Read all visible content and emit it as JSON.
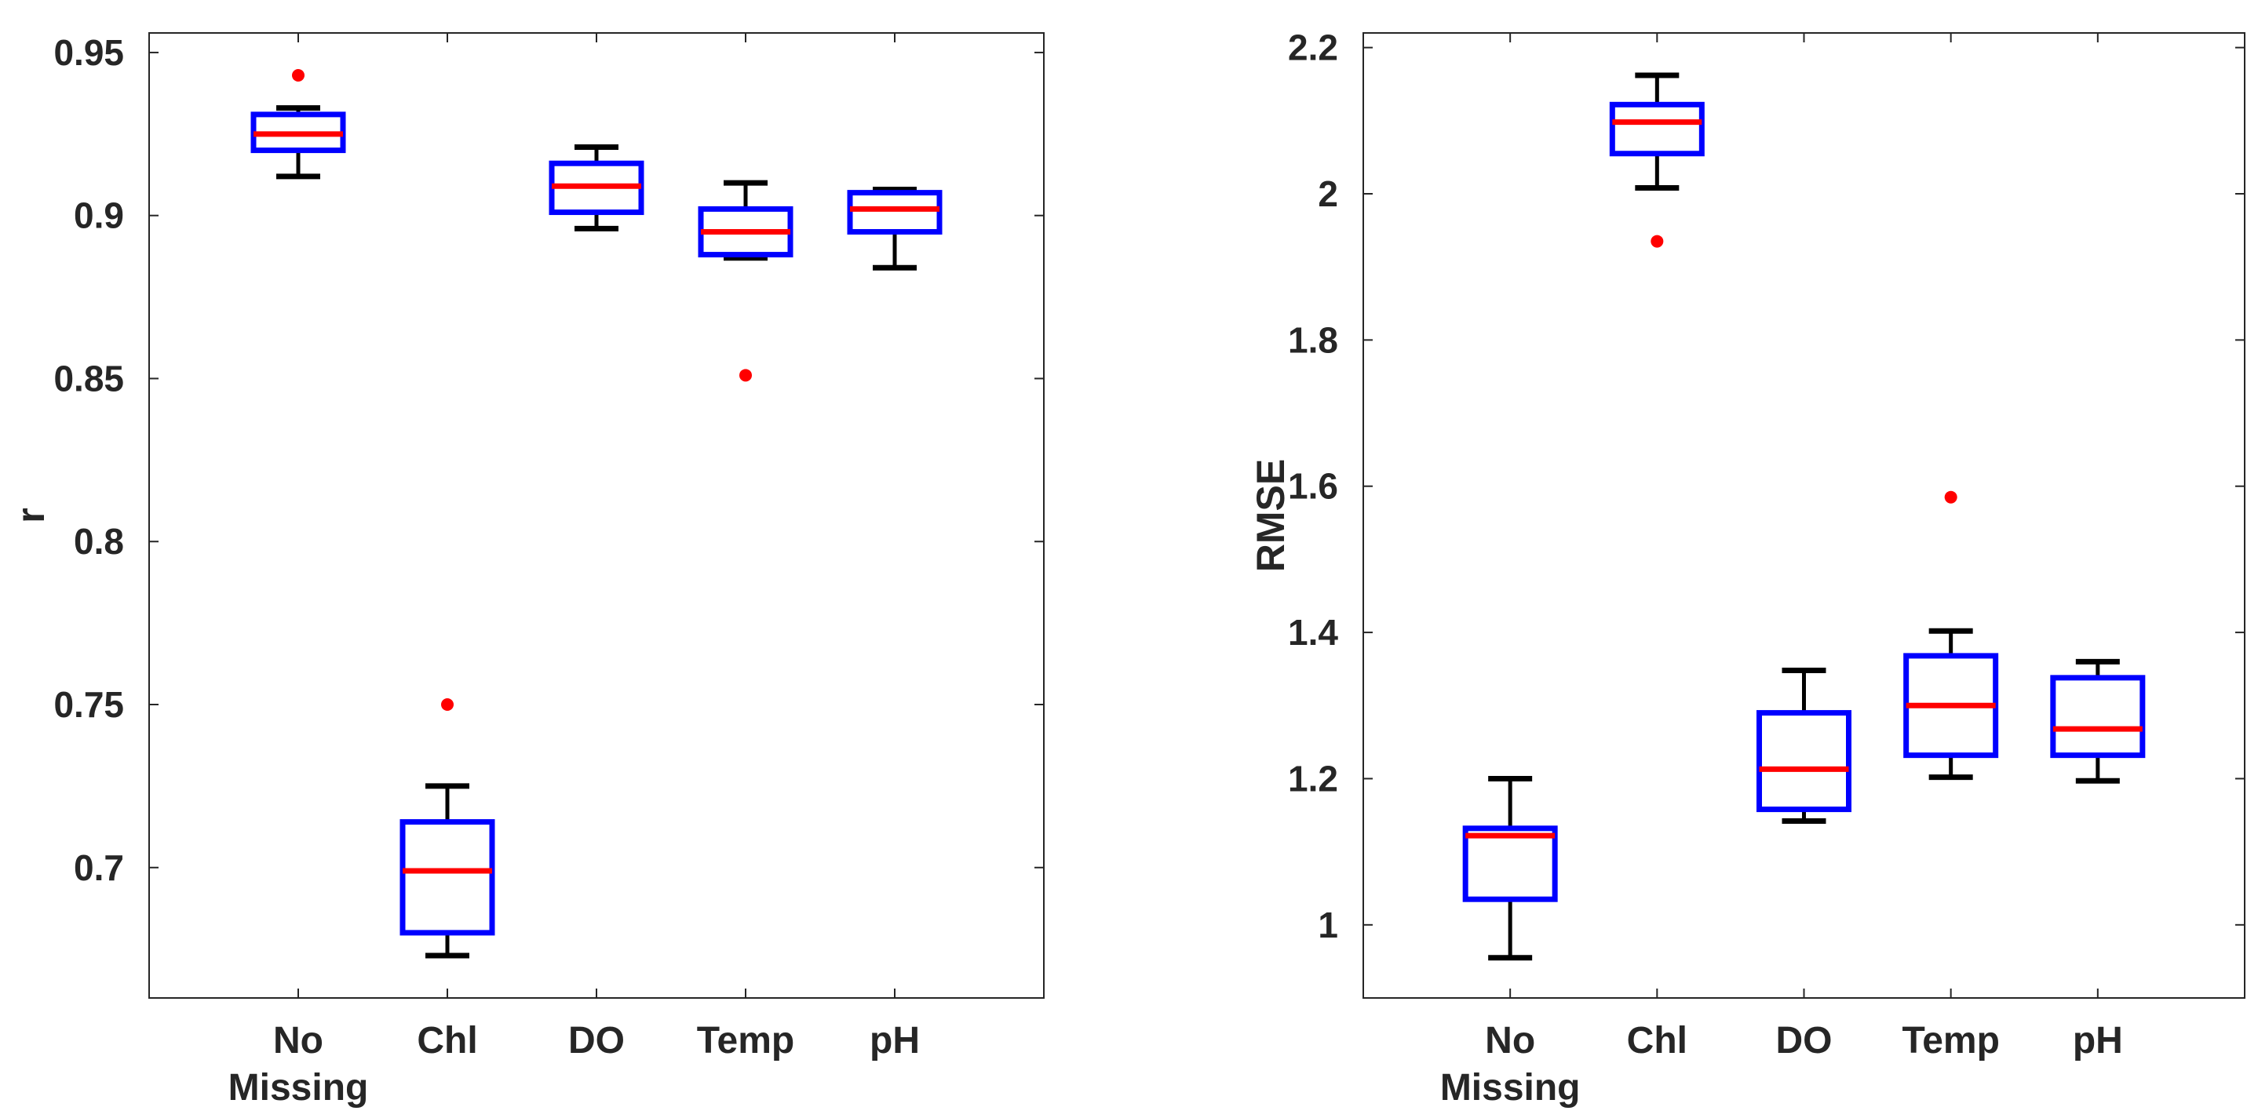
{
  "chart_data": [
    {
      "type": "box",
      "ylabel": "r",
      "xlabel": "",
      "title": "",
      "categories": [
        [
          "No",
          "Missing"
        ],
        [
          "Chl"
        ],
        [
          "DO"
        ],
        [
          "Temp"
        ],
        [
          "pH"
        ]
      ],
      "ylim": [
        0.66,
        0.956
      ],
      "yticks": [
        0.7,
        0.75,
        0.8,
        0.85,
        0.9,
        0.95
      ],
      "ytick_labels": [
        "0.7",
        "0.75",
        "0.8",
        "0.85",
        "0.9",
        "0.95"
      ],
      "boxes": [
        {
          "whisker_low": 0.912,
          "q1": 0.92,
          "median": 0.925,
          "q3": 0.931,
          "whisker_high": 0.933,
          "outliers": [
            0.943
          ]
        },
        {
          "whisker_low": 0.673,
          "q1": 0.68,
          "median": 0.699,
          "q3": 0.714,
          "whisker_high": 0.725,
          "outliers": [
            0.75
          ]
        },
        {
          "whisker_low": 0.896,
          "q1": 0.901,
          "median": 0.909,
          "q3": 0.916,
          "whisker_high": 0.921,
          "outliers": []
        },
        {
          "whisker_low": 0.887,
          "q1": 0.888,
          "median": 0.895,
          "q3": 0.902,
          "whisker_high": 0.91,
          "outliers": [
            0.851
          ]
        },
        {
          "whisker_low": 0.884,
          "q1": 0.895,
          "median": 0.902,
          "q3": 0.907,
          "whisker_high": 0.908,
          "outliers": []
        }
      ]
    },
    {
      "type": "box",
      "ylabel": "RMSE",
      "xlabel": "",
      "title": "",
      "categories": [
        [
          "No",
          "Missing"
        ],
        [
          "Chl"
        ],
        [
          "DO"
        ],
        [
          "Temp"
        ],
        [
          "pH"
        ]
      ],
      "ylim": [
        0.9,
        2.22
      ],
      "yticks": [
        1.0,
        1.2,
        1.4,
        1.6,
        1.8,
        2.0,
        2.2
      ],
      "ytick_labels": [
        "1",
        "1.2",
        "1.4",
        "1.6",
        "1.8",
        "2",
        "2.2"
      ],
      "boxes": [
        {
          "whisker_low": 0.955,
          "q1": 1.035,
          "median": 1.122,
          "q3": 1.132,
          "whisker_high": 1.2,
          "outliers": []
        },
        {
          "whisker_low": 2.008,
          "q1": 2.055,
          "median": 2.098,
          "q3": 2.122,
          "whisker_high": 2.162,
          "outliers": [
            1.935
          ]
        },
        {
          "whisker_low": 1.142,
          "q1": 1.158,
          "median": 1.213,
          "q3": 1.29,
          "whisker_high": 1.348,
          "outliers": []
        },
        {
          "whisker_low": 1.202,
          "q1": 1.232,
          "median": 1.3,
          "q3": 1.368,
          "whisker_high": 1.402,
          "outliers": [
            1.585
          ]
        },
        {
          "whisker_low": 1.197,
          "q1": 1.232,
          "median": 1.268,
          "q3": 1.338,
          "whisker_high": 1.36,
          "outliers": []
        }
      ]
    }
  ]
}
